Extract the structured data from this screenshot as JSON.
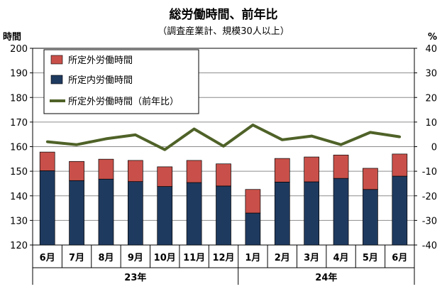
{
  "chart_data": {
    "type": "bar",
    "title": "総労働時間、前年比",
    "subtitle": "（調査産業計、規模30人以上）",
    "ylabel_left": "時間",
    "ylabel_right": "%",
    "ylim_left": [
      120,
      200
    ],
    "yticks_left": [
      120,
      130,
      140,
      150,
      160,
      170,
      180,
      190,
      200
    ],
    "ylim_right": [
      -40,
      40
    ],
    "yticks_right": [
      -40,
      -30,
      -20,
      -10,
      0,
      10,
      20,
      30,
      40
    ],
    "grid": true,
    "legend_position": "top-left",
    "categories": [
      "6月",
      "7月",
      "8月",
      "9月",
      "10月",
      "11月",
      "12月",
      "1月",
      "2月",
      "3月",
      "4月",
      "5月",
      "6月"
    ],
    "year_groups": [
      {
        "label": "23年",
        "count": 7
      },
      {
        "label": "24年",
        "count": 6
      }
    ],
    "series": [
      {
        "name": "所定内労働時間",
        "kind": "bar",
        "axis": "left",
        "color": "#1f3a5f",
        "values": [
          150.2,
          146.2,
          146.8,
          145.8,
          143.8,
          145.4,
          144.0,
          133.0,
          145.6,
          145.7,
          147.1,
          142.6,
          148.0
        ]
      },
      {
        "name": "所定外労働時間",
        "kind": "bar-stack",
        "axis": "left",
        "color": "#c9504a",
        "values": [
          7.6,
          7.8,
          8.1,
          8.6,
          8.0,
          9.0,
          9.0,
          9.6,
          9.6,
          10.1,
          9.5,
          8.6,
          9.0
        ]
      },
      {
        "name": "所定外労働時間（前年比）",
        "kind": "line",
        "axis": "right",
        "color": "#4f6228",
        "values": [
          2.0,
          0.8,
          3.2,
          4.8,
          -1.2,
          7.2,
          0.2,
          8.8,
          2.8,
          4.3,
          0.8,
          5.8,
          4.0
        ]
      }
    ],
    "legend_entries": [
      "所定外労働時間",
      "所定内労働時間",
      "所定外労働時間（前年比）"
    ]
  }
}
